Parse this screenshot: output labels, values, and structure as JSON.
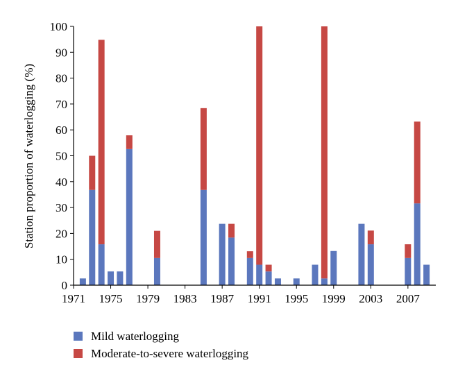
{
  "chart_data": {
    "type": "bar",
    "stacked": true,
    "ylabel": "Station proportion of waterlogging (%)",
    "xlabel": "",
    "ylim": [
      0,
      100
    ],
    "yticks": [
      0,
      10,
      20,
      30,
      40,
      50,
      60,
      70,
      80,
      90,
      100
    ],
    "xlim": [
      1971,
      2010
    ],
    "xticks": [
      1971,
      1975,
      1979,
      1983,
      1987,
      1991,
      1995,
      1999,
      2003,
      2007
    ],
    "grid": false,
    "legend_position": "bottom-left",
    "colors": {
      "mild": "#5b77bd",
      "severe": "#c64844"
    },
    "series": [
      {
        "name": "Mild waterlogging",
        "color_key": "mild"
      },
      {
        "name": "Moderate-to-severe waterlogging",
        "color_key": "severe"
      }
    ],
    "bars": [
      {
        "year": 1972,
        "mild": 2.6,
        "severe": 0
      },
      {
        "year": 1973,
        "mild": 36.8,
        "severe": 13.2
      },
      {
        "year": 1974,
        "mild": 15.8,
        "severe": 79.0
      },
      {
        "year": 1975,
        "mild": 5.3,
        "severe": 0
      },
      {
        "year": 1976,
        "mild": 5.3,
        "severe": 0
      },
      {
        "year": 1977,
        "mild": 52.6,
        "severe": 5.3
      },
      {
        "year": 1980,
        "mild": 10.5,
        "severe": 10.5
      },
      {
        "year": 1985,
        "mild": 36.8,
        "severe": 31.6
      },
      {
        "year": 1987,
        "mild": 23.7,
        "severe": 0
      },
      {
        "year": 1988,
        "mild": 18.4,
        "severe": 5.3
      },
      {
        "year": 1990,
        "mild": 10.5,
        "severe": 2.6
      },
      {
        "year": 1991,
        "mild": 7.9,
        "severe": 92.1
      },
      {
        "year": 1992,
        "mild": 5.3,
        "severe": 2.6
      },
      {
        "year": 1993,
        "mild": 2.6,
        "severe": 0
      },
      {
        "year": 1995,
        "mild": 2.6,
        "severe": 0
      },
      {
        "year": 1997,
        "mild": 7.9,
        "severe": 0
      },
      {
        "year": 1998,
        "mild": 2.6,
        "severe": 97.4
      },
      {
        "year": 1999,
        "mild": 13.2,
        "severe": 0
      },
      {
        "year": 2002,
        "mild": 23.7,
        "severe": 0
      },
      {
        "year": 2003,
        "mild": 15.8,
        "severe": 5.3
      },
      {
        "year": 2007,
        "mild": 10.5,
        "severe": 5.3
      },
      {
        "year": 2008,
        "mild": 31.6,
        "severe": 31.6
      },
      {
        "year": 2009,
        "mild": 7.9,
        "severe": 0
      }
    ]
  }
}
